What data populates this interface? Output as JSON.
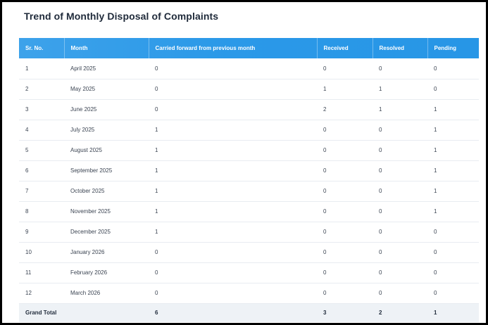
{
  "title": "Trend of Monthly Disposal of Complaints",
  "table": {
    "headers": [
      "Sr. No.",
      "Month",
      "Carried forward from previous month",
      "Received",
      "Resolved",
      "Pending"
    ],
    "rows": [
      [
        "1",
        "April 2025",
        "0",
        "0",
        "0",
        "0"
      ],
      [
        "2",
        "May 2025",
        "0",
        "1",
        "1",
        "0"
      ],
      [
        "3",
        "June 2025",
        "0",
        "2",
        "1",
        "1"
      ],
      [
        "4",
        "July 2025",
        "1",
        "0",
        "0",
        "1"
      ],
      [
        "5",
        "August 2025",
        "1",
        "0",
        "0",
        "1"
      ],
      [
        "6",
        "September 2025",
        "1",
        "0",
        "0",
        "1"
      ],
      [
        "7",
        "October 2025",
        "1",
        "0",
        "0",
        "1"
      ],
      [
        "8",
        "November 2025",
        "1",
        "0",
        "0",
        "1"
      ],
      [
        "9",
        "December 2025",
        "1",
        "0",
        "0",
        "0"
      ],
      [
        "10",
        "January 2026",
        "0",
        "0",
        "0",
        "0"
      ],
      [
        "11",
        "February 2026",
        "0",
        "0",
        "0",
        "0"
      ],
      [
        "12",
        "March 2026",
        "0",
        "0",
        "0",
        "0"
      ]
    ],
    "total": {
      "label": "Grand Total",
      "carried_forward": "6",
      "received": "3",
      "resolved": "2",
      "pending": "1"
    }
  },
  "colors": {
    "header_start": "#3da2ea",
    "header_end": "#2796e6",
    "total_row_bg": "#eef2f6"
  }
}
